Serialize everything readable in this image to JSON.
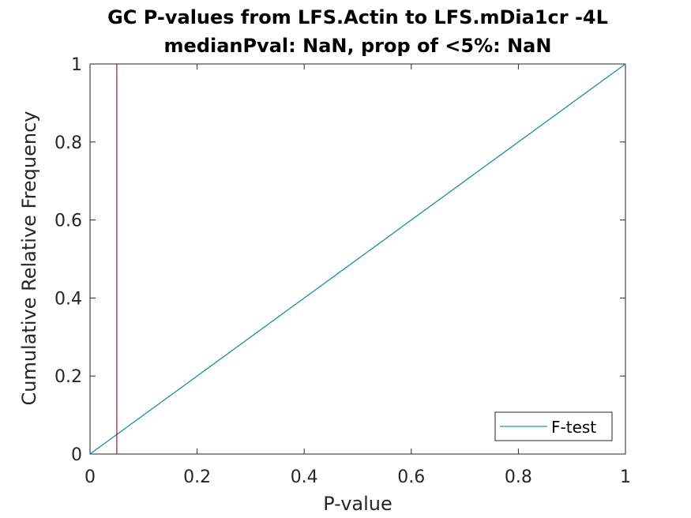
{
  "chart_data": {
    "type": "line",
    "title": "GC P-values from LFS.Actin to LFS.mDia1cr -4L",
    "subtitle": "medianPval: NaN, prop of <5%: NaN",
    "xlabel": "P-value",
    "ylabel": "Cumulative Relative Frequency",
    "xlim": [
      0,
      1
    ],
    "ylim": [
      0,
      1
    ],
    "x_ticks": [
      0,
      0.2,
      0.4,
      0.6,
      0.8,
      1
    ],
    "x_tick_labels": [
      "0",
      "0.2",
      "0.4",
      "0.6",
      "0.8",
      "1"
    ],
    "y_ticks": [
      0,
      0.2,
      0.4,
      0.6,
      0.8,
      1
    ],
    "y_tick_labels": [
      "0",
      "0.2",
      "0.4",
      "0.6",
      "0.8",
      "1"
    ],
    "grid": false,
    "legend_position": "bottom-right",
    "series": [
      {
        "name": "F-test",
        "x": [
          0,
          1
        ],
        "y": [
          0,
          1
        ],
        "color": "#1f9e8a"
      },
      {
        "x": [
          0,
          1
        ],
        "y": [
          0,
          1
        ],
        "color": "#0072bd"
      }
    ],
    "reference_line": {
      "x": 0.05,
      "color": "#a2142f"
    }
  }
}
